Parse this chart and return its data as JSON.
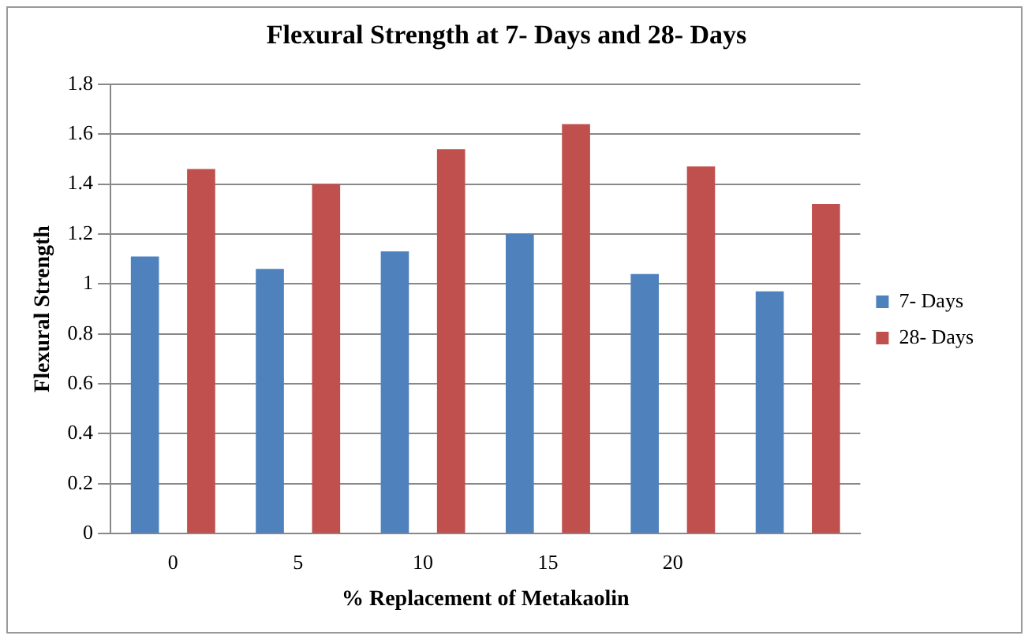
{
  "chart_data": {
    "type": "bar",
    "title": "Flexural Strength at 7- Days and 28- Days",
    "xlabel": "% Replacement of Metakaolin",
    "ylabel": "Flexural Strength",
    "categories": [
      "0",
      "5",
      "10",
      "15",
      "20",
      null
    ],
    "series": [
      {
        "name": "7- Days",
        "color": "#4f81bd",
        "values": [
          1.11,
          1.06,
          1.13,
          1.2,
          1.04,
          0.97
        ]
      },
      {
        "name": "28- Days",
        "color": "#c0504d",
        "values": [
          1.46,
          1.4,
          1.54,
          1.64,
          1.47,
          1.32
        ]
      }
    ],
    "ylim": [
      0,
      1.8
    ],
    "yticks": [
      0,
      0.2,
      0.4,
      0.6,
      0.8,
      1,
      1.2,
      1.4,
      1.6,
      1.8
    ],
    "grid": "y",
    "legend": "right"
  }
}
